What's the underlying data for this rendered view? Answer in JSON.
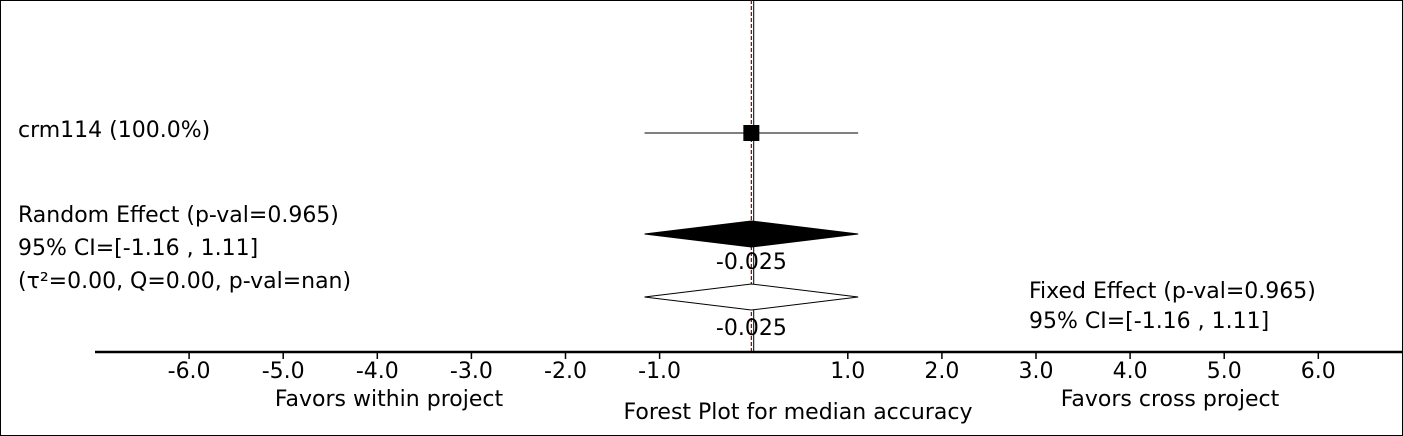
{
  "chart_data": {
    "type": "forest",
    "title": "Forest Plot for median accuracy",
    "xlim": [
      -7.0,
      6.9
    ],
    "ticks": [
      {
        "value": -6.0,
        "label": "-6.0"
      },
      {
        "value": -5.0,
        "label": "-5.0"
      },
      {
        "value": -4.0,
        "label": "-4.0"
      },
      {
        "value": -3.0,
        "label": "-3.0"
      },
      {
        "value": -2.0,
        "label": "-2.0"
      },
      {
        "value": -1.0,
        "label": "-1.0"
      },
      {
        "value": 1.0,
        "label": "1.0"
      },
      {
        "value": 2.0,
        "label": "2.0"
      },
      {
        "value": 3.0,
        "label": "3.0"
      },
      {
        "value": 4.0,
        "label": "4.0"
      },
      {
        "value": 5.0,
        "label": "5.0"
      },
      {
        "value": 6.0,
        "label": "6.0"
      }
    ],
    "studies": [
      {
        "label": "crm114 (100.0%)",
        "estimate": -0.025,
        "ci_low": -1.16,
        "ci_high": 1.11,
        "weight_pct": 100.0
      }
    ],
    "random_effect": {
      "lines": [
        "Random Effect (p-val=0.965)",
        "95% CI=[-1.16 , 1.11]",
        "(τ²=0.00, Q=0.00, p-val=nan)"
      ],
      "estimate": -0.025,
      "ci_low": -1.16,
      "ci_high": 1.11,
      "value_label": "-0.025"
    },
    "fixed_effect": {
      "lines": [
        "Fixed Effect (p-val=0.965)",
        "95% CI=[-1.16 , 1.11]"
      ],
      "estimate": -0.025,
      "ci_low": -1.16,
      "ci_high": 1.11,
      "value_label": "-0.025"
    },
    "left_label": "Favors within project",
    "right_label": "Favors cross project",
    "colors": {
      "ink": "#000000",
      "reference": "#8b0000"
    }
  }
}
